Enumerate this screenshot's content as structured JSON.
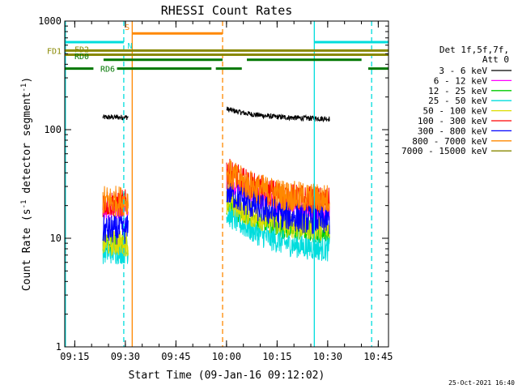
{
  "chart_data": {
    "type": "line",
    "title": "RHESSI Count Rates",
    "xlabel": "Start Time (09-Jan-16 09:12:02)",
    "ylabel_main": "Count Rate (s",
    "ylabel_sup1": "-1",
    "ylabel_mid": " detector segment",
    "ylabel_sup2": "-1",
    "ylabel_end": ")",
    "x_start": "09:12:02",
    "x_ticks": [
      "09:15",
      "09:30",
      "09:45",
      "10:00",
      "10:15",
      "10:30",
      "10:45"
    ],
    "y_scale": "log",
    "y_ticks": [
      "1",
      "10",
      "100",
      "1000"
    ],
    "ylim": [
      1,
      1000
    ],
    "xlim_minutes": [
      0,
      96
    ],
    "legend_header": [
      "Det 1f,5f,7f,",
      "Att 0"
    ],
    "series": [
      {
        "name": "3 - 6 keV",
        "color": "#000000",
        "level_seg1": 130,
        "level_seg2_start": 155,
        "level_seg2_end": 125
      },
      {
        "name": "6 - 12 keV",
        "color": "#ff00ff",
        "level_seg1": 18,
        "level_seg2_start": 35,
        "level_seg2_end": 17
      },
      {
        "name": "12 - 25 keV",
        "color": "#00cc00",
        "level_seg1": 9,
        "level_seg2_start": 20,
        "level_seg2_end": 11
      },
      {
        "name": "25 - 50 keV",
        "color": "#00dddd",
        "level_seg1": 7.5,
        "level_seg2_start": 17,
        "level_seg2_end": 7.5
      },
      {
        "name": "50 - 100 keV",
        "color": "#dddd00",
        "level_seg1": 9,
        "level_seg2_start": 22,
        "level_seg2_end": 12
      },
      {
        "name": "100 - 300 keV",
        "color": "#ff0000",
        "level_seg1": 21,
        "level_seg2_start": 42,
        "level_seg2_end": 21
      },
      {
        "name": "300 - 800 keV",
        "color": "#0000ff",
        "level_seg1": 12,
        "level_seg2_start": 28,
        "level_seg2_end": 14
      },
      {
        "name": "800 - 7000 keV",
        "color": "#ff8800",
        "level_seg1": 22,
        "level_seg2_start": 40,
        "level_seg2_end": 22
      },
      {
        "name": "7000 - 15000 keV",
        "color": "#888800",
        "level_seg1": null,
        "level_seg2_start": null,
        "level_seg2_end": null
      }
    ],
    "data_segments_minutes": [
      [
        11.3,
        18.8
      ],
      [
        48.0,
        78.5
      ]
    ],
    "flags": [
      {
        "label": "FD1",
        "color": "#888800",
        "y_value": 535,
        "segments": [
          [
            0,
            96
          ]
        ]
      },
      {
        "label": "FD2",
        "color": "#888800",
        "y_value": 490,
        "segments": [
          [
            0,
            96
          ]
        ]
      },
      {
        "label": "RD0",
        "color": "#007700",
        "y_value": 440,
        "segments": [
          [
            11.5,
            46.8
          ],
          [
            54.0,
            88.0
          ]
        ]
      },
      {
        "label": "RD6",
        "color": "#007700",
        "y_value": 365,
        "segments": [
          [
            0,
            8.5
          ],
          [
            15.5,
            43.5
          ],
          [
            44.8,
            52.5
          ],
          [
            90.0,
            96
          ]
        ]
      },
      {
        "label": "S",
        "color": "#ff8800",
        "y_value": 770,
        "segments": [
          [
            20.0,
            46.8
          ]
        ]
      },
      {
        "label": "N",
        "color": "#00dddd",
        "y_value": 640,
        "segments": [
          [
            0,
            17.5
          ],
          [
            74.0,
            96
          ]
        ]
      }
    ],
    "vlines": [
      {
        "minute": 0.2,
        "color": "#00dddd",
        "style": "solid"
      },
      {
        "minute": 17.5,
        "color": "#00dddd",
        "style": "dashed"
      },
      {
        "minute": 20.0,
        "color": "#ff8800",
        "style": "solid"
      },
      {
        "minute": 46.8,
        "color": "#ff8800",
        "style": "dashed"
      },
      {
        "minute": 74.0,
        "color": "#00dddd",
        "style": "solid"
      },
      {
        "minute": 91.0,
        "color": "#00dddd",
        "style": "dashed"
      }
    ],
    "grid": false
  },
  "footer": {
    "date": "25-Oct-2021 16:40"
  }
}
